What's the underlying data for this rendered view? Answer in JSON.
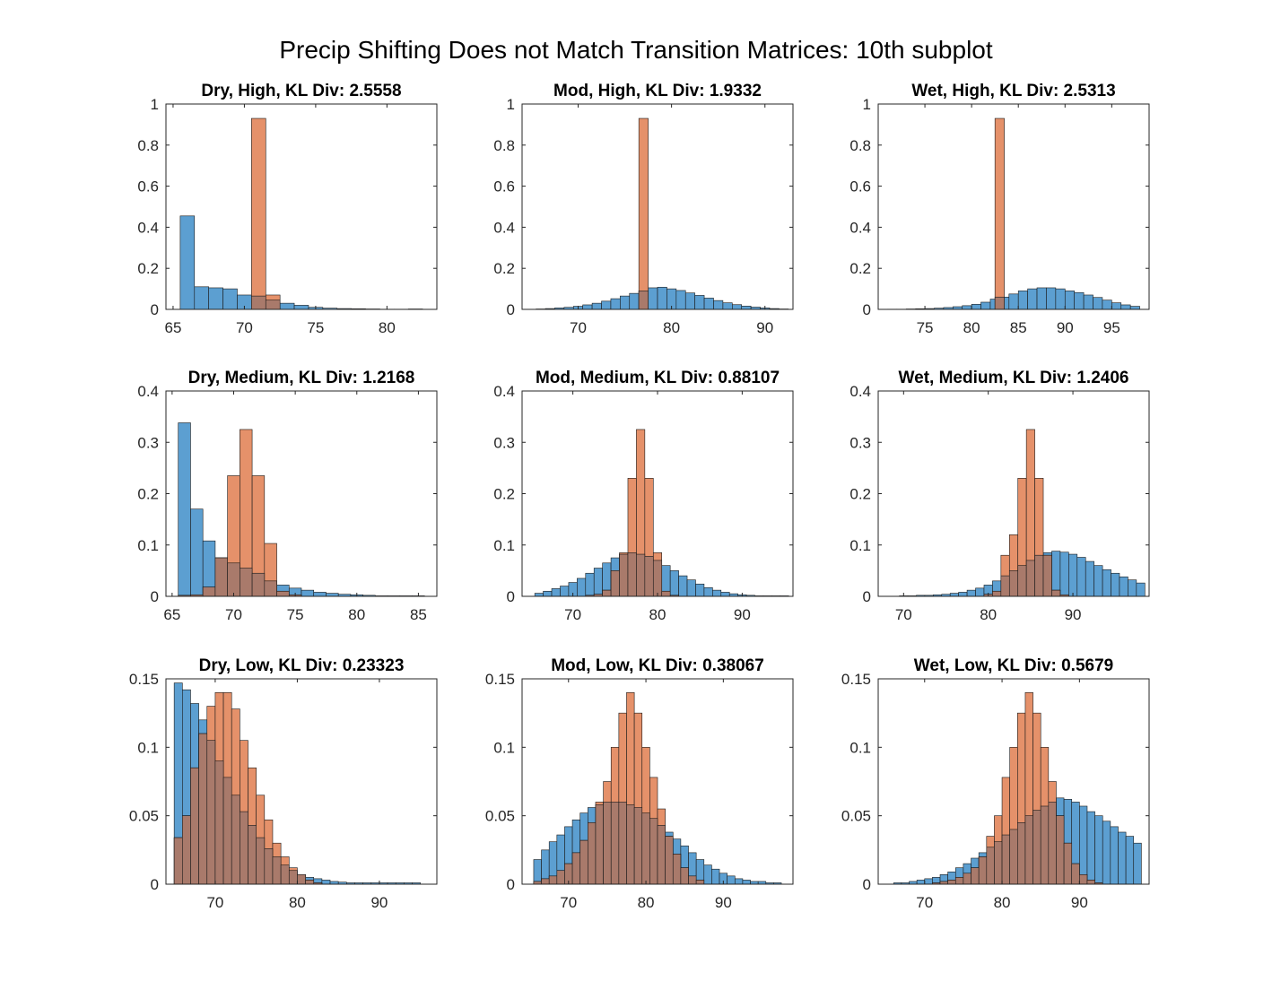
{
  "figure": {
    "suptitle": "Precip Shifting Does not Match Transition Matrices: 10th subplot"
  },
  "colors": {
    "series_a": "#5c9fd1",
    "series_b": "#e5916a",
    "overlap": "#a97a6b"
  },
  "chart_data": [
    {
      "type": "bar",
      "title": "Dry, High, KL Div: 2.5558",
      "xlim": [
        64.5,
        83.5
      ],
      "ylim": [
        0,
        1
      ],
      "xticks": [
        65,
        70,
        75,
        80
      ],
      "yticks": [
        0,
        0.2,
        0.4,
        0.6,
        0.8,
        1
      ],
      "series": [
        {
          "x0": 65.5,
          "bin": 1,
          "values": [
            0.455,
            0.11,
            0.105,
            0.1,
            0.07,
            0.065,
            0.045,
            0.03,
            0.02,
            0.01,
            0.006,
            0.004,
            0.003,
            0.002,
            0.001,
            0.001,
            0.002
          ]
        },
        {
          "x0": 70.5,
          "bin": 1,
          "values": [
            0.93,
            0.07
          ]
        }
      ]
    },
    {
      "type": "bar",
      "title": "Mod, High, KL Div: 1.9332",
      "xlim": [
        64,
        93
      ],
      "ylim": [
        0,
        1
      ],
      "xticks": [
        70,
        80,
        90
      ],
      "yticks": [
        0,
        0.2,
        0.4,
        0.6,
        0.8,
        1
      ],
      "series": [
        {
          "x0": 65.5,
          "bin": 1,
          "values": [
            0.002,
            0.004,
            0.007,
            0.01,
            0.015,
            0.022,
            0.03,
            0.04,
            0.052,
            0.065,
            0.078,
            0.09,
            0.105,
            0.108,
            0.1,
            0.092,
            0.08,
            0.068,
            0.055,
            0.043,
            0.032,
            0.023,
            0.016,
            0.011,
            0.007,
            0.004,
            0.002
          ]
        },
        {
          "x0": 76.5,
          "bin": 1,
          "values": [
            0.93
          ]
        }
      ]
    },
    {
      "type": "bar",
      "title": "Wet, High, KL Div: 2.5313",
      "xlim": [
        70,
        99
      ],
      "ylim": [
        0,
        1
      ],
      "xticks": [
        75,
        80,
        85,
        90,
        95
      ],
      "yticks": [
        0,
        0.2,
        0.4,
        0.6,
        0.8,
        1
      ],
      "series": [
        {
          "x0": 71,
          "bin": 1,
          "values": [
            0.001,
            0.001,
            0.002,
            0.003,
            0.004,
            0.006,
            0.009,
            0.013,
            0.018,
            0.025,
            0.035,
            0.05,
            0.06,
            0.075,
            0.09,
            0.1,
            0.105,
            0.105,
            0.1,
            0.09,
            0.082,
            0.07,
            0.058,
            0.045,
            0.032,
            0.022,
            0.015
          ]
        },
        {
          "x0": 82.5,
          "bin": 1,
          "values": [
            0.93
          ]
        }
      ]
    },
    {
      "type": "bar",
      "title": "Dry, Medium, KL Div: 1.2168",
      "xlim": [
        64.5,
        86.5
      ],
      "ylim": [
        0,
        0.4
      ],
      "xticks": [
        65,
        70,
        75,
        80,
        85
      ],
      "yticks": [
        0,
        0.1,
        0.2,
        0.3,
        0.4
      ],
      "series": [
        {
          "x0": 65.5,
          "bin": 1,
          "values": [
            0.338,
            0.17,
            0.108,
            0.075,
            0.065,
            0.055,
            0.045,
            0.03,
            0.022,
            0.016,
            0.012,
            0.008,
            0.006,
            0.004,
            0.003,
            0.002,
            0.001,
            0.001,
            0.001,
            0.001
          ]
        },
        {
          "x0": 65.5,
          "bin": 1,
          "values": [
            0.002,
            0.003,
            0.018,
            0.075,
            0.235,
            0.325,
            0.235,
            0.103,
            0.01,
            0.003
          ]
        }
      ]
    },
    {
      "type": "bar",
      "title": "Mod, Medium, KL Div: 0.88107",
      "xlim": [
        64,
        96
      ],
      "ylim": [
        0,
        0.4
      ],
      "xticks": [
        70,
        80,
        90
      ],
      "yticks": [
        0,
        0.1,
        0.2,
        0.3,
        0.4
      ],
      "series": [
        {
          "x0": 65.5,
          "bin": 1,
          "values": [
            0.006,
            0.01,
            0.015,
            0.02,
            0.027,
            0.035,
            0.045,
            0.055,
            0.065,
            0.075,
            0.082,
            0.085,
            0.082,
            0.078,
            0.07,
            0.06,
            0.05,
            0.04,
            0.032,
            0.024,
            0.017,
            0.012,
            0.008,
            0.005,
            0.003,
            0.002,
            0.001,
            0.001,
            0.001,
            0.001
          ]
        },
        {
          "x0": 65.5,
          "bin": 1,
          "values": [
            0,
            0,
            0,
            0,
            0,
            0,
            0.002,
            0.004,
            0.012,
            0.05,
            0.085,
            0.23,
            0.325,
            0.23,
            0.085,
            0.01,
            0.002
          ]
        }
      ]
    },
    {
      "type": "bar",
      "title": "Wet, Medium, KL Div: 1.2406",
      "xlim": [
        67,
        99
      ],
      "ylim": [
        0,
        0.4
      ],
      "xticks": [
        70,
        80,
        90
      ],
      "yticks": [
        0,
        0.1,
        0.2,
        0.3,
        0.4
      ],
      "series": [
        {
          "x0": 69.5,
          "bin": 1,
          "values": [
            0.001,
            0.001,
            0.002,
            0.002,
            0.003,
            0.004,
            0.006,
            0.008,
            0.012,
            0.016,
            0.022,
            0.03,
            0.04,
            0.05,
            0.06,
            0.07,
            0.08,
            0.085,
            0.088,
            0.086,
            0.082,
            0.076,
            0.068,
            0.06,
            0.052,
            0.045,
            0.038,
            0.032,
            0.026
          ]
        },
        {
          "x0": 79.5,
          "bin": 1,
          "values": [
            0.004,
            0.01,
            0.08,
            0.12,
            0.23,
            0.325,
            0.23,
            0.08,
            0.012,
            0.003
          ]
        }
      ]
    },
    {
      "type": "bar",
      "title": "Dry, Low, KL Div: 0.23323",
      "xlim": [
        64,
        97
      ],
      "ylim": [
        0,
        0.15
      ],
      "xticks": [
        70,
        80,
        90
      ],
      "yticks": [
        0,
        0.05,
        0.1,
        0.15
      ],
      "series": [
        {
          "x0": 65,
          "bin": 1,
          "values": [
            0.147,
            0.142,
            0.132,
            0.12,
            0.105,
            0.09,
            0.078,
            0.065,
            0.053,
            0.043,
            0.034,
            0.026,
            0.02,
            0.014,
            0.01,
            0.007,
            0.005,
            0.004,
            0.003,
            0.002,
            0.0015,
            0.001,
            0.001,
            0.001,
            0.001,
            0.001,
            0.001,
            0.001,
            0.001,
            0.001
          ]
        },
        {
          "x0": 65,
          "bin": 1,
          "values": [
            0.034,
            0.05,
            0.085,
            0.11,
            0.13,
            0.14,
            0.14,
            0.128,
            0.105,
            0.085,
            0.065,
            0.047,
            0.03,
            0.02,
            0.012,
            0.007,
            0.003,
            0.001
          ]
        }
      ]
    },
    {
      "type": "bar",
      "title": "Mod, Low, KL Div: 0.38067",
      "xlim": [
        64,
        99
      ],
      "ylim": [
        0,
        0.15
      ],
      "xticks": [
        70,
        80,
        90
      ],
      "yticks": [
        0,
        0.05,
        0.1,
        0.15
      ],
      "series": [
        {
          "x0": 65.5,
          "bin": 1,
          "values": [
            0.018,
            0.025,
            0.031,
            0.036,
            0.042,
            0.047,
            0.052,
            0.056,
            0.058,
            0.06,
            0.06,
            0.06,
            0.058,
            0.056,
            0.052,
            0.048,
            0.043,
            0.038,
            0.033,
            0.028,
            0.023,
            0.018,
            0.014,
            0.011,
            0.008,
            0.006,
            0.004,
            0.003,
            0.002,
            0.002,
            0.001,
            0.001
          ]
        },
        {
          "x0": 65.5,
          "bin": 1,
          "values": [
            0.002,
            0.004,
            0.006,
            0.01,
            0.015,
            0.023,
            0.032,
            0.045,
            0.06,
            0.075,
            0.1,
            0.125,
            0.14,
            0.125,
            0.1,
            0.078,
            0.055,
            0.035,
            0.022,
            0.012,
            0.006,
            0.003
          ]
        }
      ]
    },
    {
      "type": "bar",
      "title": "Wet, Low, KL Div: 0.5679",
      "xlim": [
        64,
        99
      ],
      "ylim": [
        0,
        0.15
      ],
      "xticks": [
        70,
        80,
        90
      ],
      "yticks": [
        0,
        0.05,
        0.1,
        0.15
      ],
      "series": [
        {
          "x0": 66,
          "bin": 1,
          "values": [
            0.001,
            0.001,
            0.002,
            0.003,
            0.004,
            0.005,
            0.007,
            0.009,
            0.012,
            0.015,
            0.019,
            0.023,
            0.027,
            0.031,
            0.036,
            0.04,
            0.045,
            0.05,
            0.054,
            0.057,
            0.06,
            0.063,
            0.062,
            0.06,
            0.057,
            0.053,
            0.05,
            0.046,
            0.042,
            0.038,
            0.035,
            0.03
          ]
        },
        {
          "x0": 66,
          "bin": 1,
          "values": [
            0,
            0,
            0,
            0,
            0,
            0.001,
            0.002,
            0.003,
            0.005,
            0.008,
            0.012,
            0.02,
            0.035,
            0.05,
            0.078,
            0.1,
            0.125,
            0.14,
            0.125,
            0.1,
            0.075,
            0.05,
            0.03,
            0.015,
            0.007,
            0.003,
            0.001
          ]
        }
      ]
    }
  ]
}
